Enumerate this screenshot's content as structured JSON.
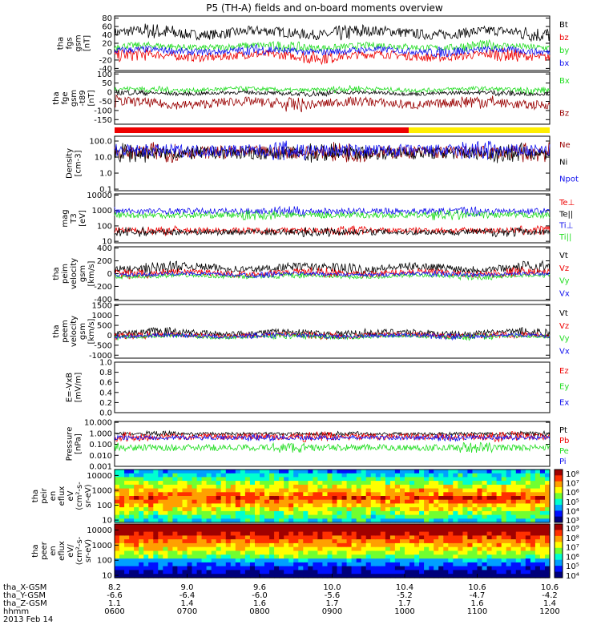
{
  "title": "P5 (TH-A) fields and on-board moments overview",
  "colors": {
    "black": "#000000",
    "red": "#ee0000",
    "green": "#22dd22",
    "blue": "#1111ee",
    "darkred": "#990000",
    "yellow": "#ffee00"
  },
  "chart_data": {
    "type": "line",
    "x_range": [
      "06:00",
      "12:00"
    ],
    "time_ticks": [
      {
        "x": "8.2",
        "y": "-6.6",
        "z": "1.1",
        "t": "0600"
      },
      {
        "x": "9.0",
        "y": "-6.4",
        "z": "1.4",
        "t": "0700"
      },
      {
        "x": "9.6",
        "y": "-6.0",
        "z": "1.6",
        "t": "0800"
      },
      {
        "x": "10.0",
        "y": "-5.6",
        "z": "1.7",
        "t": "0900"
      },
      {
        "x": "10.4",
        "y": "-5.2",
        "z": "1.7",
        "t": "1000"
      },
      {
        "x": "10.6",
        "y": "-4.7",
        "z": "1.6",
        "t": "1100"
      },
      {
        "x": "10.6",
        "y": "-4.2",
        "z": "1.4",
        "t": "1200"
      }
    ],
    "row_labels": [
      "tha_X-GSM",
      "tha_Y-GSM",
      "tha_Z-GSM",
      "hhmm",
      "2013 Feb 14"
    ],
    "panels": [
      {
        "id": "fgs",
        "ylabel": "tha\nfgs\ngsm\n[nT]",
        "scale": "linear",
        "ticks": [
          "80",
          "60",
          "40",
          "20",
          "0",
          "-20",
          "-40"
        ],
        "ylim": [
          -45,
          85
        ],
        "series": [
          {
            "name": "Bt",
            "color": "black",
            "base": 45,
            "amp": 12
          },
          {
            "name": "bz",
            "color": "red",
            "base": -10,
            "amp": 10
          },
          {
            "name": "by",
            "color": "green",
            "base": 12,
            "amp": 8
          },
          {
            "name": "bx",
            "color": "blue",
            "base": 2,
            "amp": 8
          }
        ]
      },
      {
        "id": "fge",
        "ylabel": "tha\nfge\ngsm\n-t89\n[nT]",
        "scale": "linear",
        "ticks": [
          "100",
          "50",
          "0",
          "-50",
          "-100",
          "-150"
        ],
        "ylim": [
          -175,
          110
        ],
        "series": [
          {
            "name": "Bx",
            "color": "green",
            "base": 15,
            "amp": 12
          },
          {
            "name": "",
            "color": "black",
            "base": -5,
            "amp": 10
          },
          {
            "name": "Bz",
            "color": "darkred",
            "base": -60,
            "amp": 25
          }
        ]
      },
      {
        "id": "density",
        "ylabel": "Density\n[cm-3]",
        "scale": "log",
        "ticks": [
          "100.0",
          "10.0",
          "1.0",
          "0.1"
        ],
        "ylim": [
          0.08,
          200
        ],
        "series": [
          {
            "name": "Ne",
            "color": "darkred",
            "base": 20,
            "amp": 0.4
          },
          {
            "name": "Ni",
            "color": "black",
            "base": 18,
            "amp": 0.4
          },
          {
            "name": "Npot",
            "color": "blue",
            "base": 25,
            "amp": 0.4
          }
        ]
      },
      {
        "id": "temp",
        "ylabel": "mag\nT3\n[eV]",
        "scale": "log",
        "ticks": [
          "10000",
          "1000",
          "100",
          "10"
        ],
        "ylim": [
          8,
          12000
        ],
        "series": [
          {
            "name": "Te⊥",
            "color": "red",
            "base": 50,
            "amp": 0.2
          },
          {
            "name": "Te||",
            "color": "black",
            "base": 40,
            "amp": 0.2
          },
          {
            "name": "Ti⊥",
            "color": "blue",
            "base": 900,
            "amp": 0.2
          },
          {
            "name": "Ti||",
            "color": "green",
            "base": 500,
            "amp": 0.2
          }
        ]
      },
      {
        "id": "peim",
        "ylabel": "tha\npeim\nvelocity\ngsm\n[km/s]",
        "scale": "linear",
        "ticks": [
          "400",
          "200",
          "0",
          "-200",
          "-400"
        ],
        "ylim": [
          -420,
          420
        ],
        "series": [
          {
            "name": "Vt",
            "color": "black",
            "base": 90,
            "amp": 60
          },
          {
            "name": "Vz",
            "color": "red",
            "base": 10,
            "amp": 50
          },
          {
            "name": "Vy",
            "color": "green",
            "base": -40,
            "amp": 30
          },
          {
            "name": "Vx",
            "color": "blue",
            "base": -10,
            "amp": 30
          }
        ]
      },
      {
        "id": "peem",
        "ylabel": "tha\npeem\nvelocity\ngsm\n[km/s]",
        "scale": "linear",
        "ticks": [
          "1500",
          "1000",
          "500",
          "0",
          "-500",
          "-1000"
        ],
        "ylim": [
          -1150,
          1550
        ],
        "series": [
          {
            "name": "Vt",
            "color": "black",
            "base": 120,
            "amp": 150
          },
          {
            "name": "Vz",
            "color": "red",
            "base": 0,
            "amp": 120
          },
          {
            "name": "Vy",
            "color": "green",
            "base": -60,
            "amp": 100
          },
          {
            "name": "Vx",
            "color": "blue",
            "base": -30,
            "amp": 100
          }
        ]
      },
      {
        "id": "efield",
        "ylabel": "E=-VxB\n[mV/m]",
        "scale": "linear",
        "ticks": [
          "1.0",
          "0.8",
          "0.6",
          "0.4",
          "0.2",
          "0.0"
        ],
        "ylim": [
          0,
          1
        ],
        "series": [
          {
            "name": "Ez",
            "color": "red",
            "base": null,
            "amp": 0
          },
          {
            "name": "Ey",
            "color": "green",
            "base": null,
            "amp": 0
          },
          {
            "name": "Ex",
            "color": "blue",
            "base": null,
            "amp": 0
          }
        ]
      },
      {
        "id": "pressure",
        "ylabel": "Pressure\n[nPa]",
        "scale": "log",
        "ticks": [
          "10.000",
          "1.000",
          "0.100",
          "0.010",
          "0.001"
        ],
        "ylim": [
          0.001,
          12
        ],
        "series": [
          {
            "name": "Pt",
            "color": "black",
            "base": 0.9,
            "amp": 0.15
          },
          {
            "name": "Pb",
            "color": "red",
            "base": 0.5,
            "amp": 0.3
          },
          {
            "name": "Pe",
            "color": "green",
            "base": 0.05,
            "amp": 0.3
          },
          {
            "name": "Pi",
            "color": "blue",
            "base": 0.4,
            "amp": 0.2
          }
        ]
      }
    ],
    "spectrograms": [
      {
        "id": "peir",
        "ylabel": "tha\npeir\nen\neflux\neV\n(cm²-s-\nsr-eV)",
        "ticks": [
          "10000",
          "1000",
          "100",
          "10"
        ],
        "ylim": [
          7,
          25000
        ],
        "colorbar": [
          "10⁸",
          "10⁷",
          "10⁶",
          "10⁵",
          "10⁴",
          "10³"
        ]
      },
      {
        "id": "peer",
        "ylabel": "tha\npeer\nen\neflux\neV/\n(cm²-s-\nsr-eV)",
        "ticks": [
          "10000",
          "1000",
          "100",
          "10"
        ],
        "ylim": [
          7,
          25000
        ],
        "colorbar": [
          "10⁹",
          "10⁸",
          "10⁷",
          "10⁶",
          "10⁵",
          "10⁴"
        ]
      }
    ]
  }
}
